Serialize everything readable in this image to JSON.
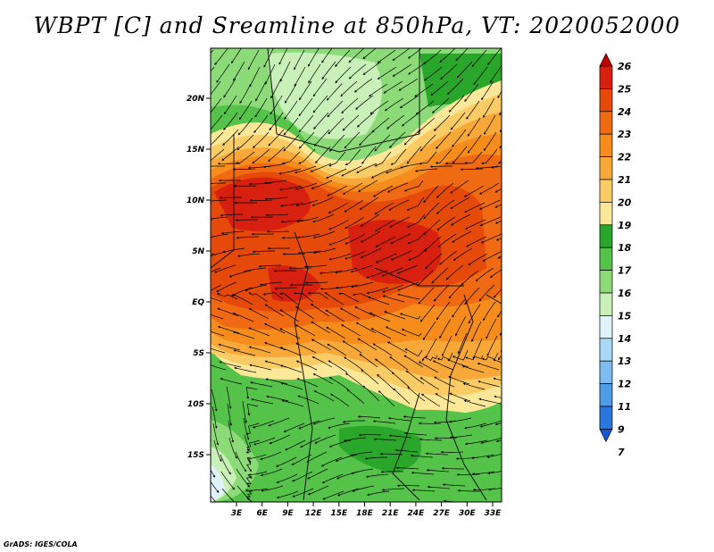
{
  "title": "WBPT [C] and Sreamline at 850hPa, VT: 2020052000",
  "credit": "GrADS: IGES/COLA",
  "map": {
    "lat_labels": [
      "20N",
      "15N",
      "10N",
      "5N",
      "EQ",
      "5S",
      "10S",
      "15S"
    ],
    "lon_labels": [
      "3E",
      "6E",
      "9E",
      "12E",
      "15E",
      "18E",
      "21E",
      "24E",
      "27E",
      "30E",
      "33E"
    ]
  },
  "colorbar": {
    "labels": [
      "26",
      "25",
      "24",
      "23",
      "22",
      "21",
      "20",
      "19",
      "18",
      "17",
      "16",
      "15",
      "14",
      "13",
      "12",
      "11",
      "9",
      "7"
    ],
    "colors": [
      "#c00000",
      "#d82010",
      "#e64a0a",
      "#ef6a12",
      "#f58c1c",
      "#f8a838",
      "#fbcc66",
      "#fde89a",
      "#2aa62a",
      "#55c24a",
      "#8cdb78",
      "#c8f0b8",
      "#dff3fb",
      "#a9d9f6",
      "#7dbbf0",
      "#4f9be8",
      "#2a78de",
      "#1558d0"
    ]
  }
}
